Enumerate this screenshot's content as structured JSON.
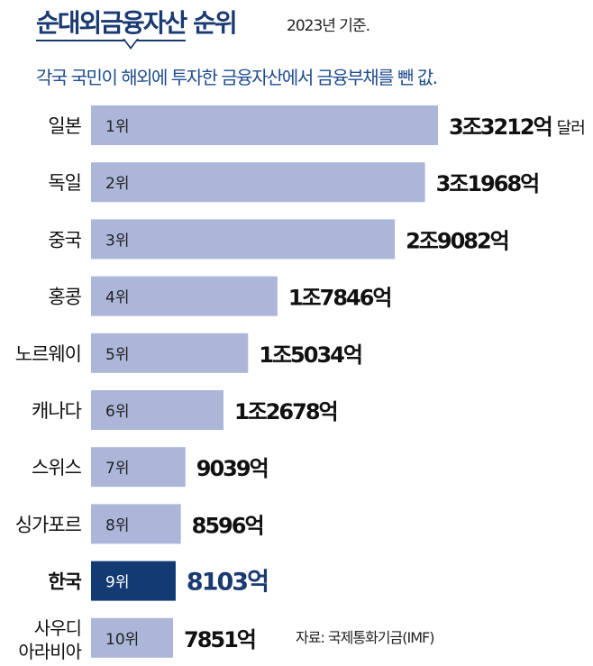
{
  "header": {
    "title_main": "순대외금융자산",
    "title_rest": " 순위",
    "basis": "2023년 기준.",
    "subtitle": "각국 국민이 해외에 투자한 금융자산에서 금융부채를 뺀 값.",
    "source": "자료: 국제통화기금(IMF)"
  },
  "colors": {
    "bar": "#abb6d9",
    "highlight_bar": "#143a74",
    "highlight_text": "#1a3a72",
    "title": "#1a3a72"
  },
  "chart_data": {
    "type": "bar",
    "orientation": "horizontal",
    "title": "순대외금융자산 순위",
    "unit": "달러",
    "categories": [
      "일본",
      "독일",
      "중국",
      "홍콩",
      "노르웨이",
      "캐나다",
      "스위스",
      "싱가포르",
      "한국",
      "사우디 아라비아"
    ],
    "ranks": [
      "1위",
      "2위",
      "3위",
      "4위",
      "5위",
      "6위",
      "7위",
      "8위",
      "9위",
      "10위"
    ],
    "values": [
      33212,
      31968,
      29082,
      17846,
      15034,
      12678,
      9039,
      8596,
      8103,
      7851
    ],
    "value_labels": [
      "3조3212억",
      "3조1968억",
      "2조9082억",
      "1조7846억",
      "1조5034억",
      "1조2678억",
      "9039억",
      "8596억",
      "8103억",
      "7851억"
    ],
    "first_label_suffix": "달러",
    "highlight_index": 8,
    "xlim": [
      0,
      36000
    ]
  }
}
